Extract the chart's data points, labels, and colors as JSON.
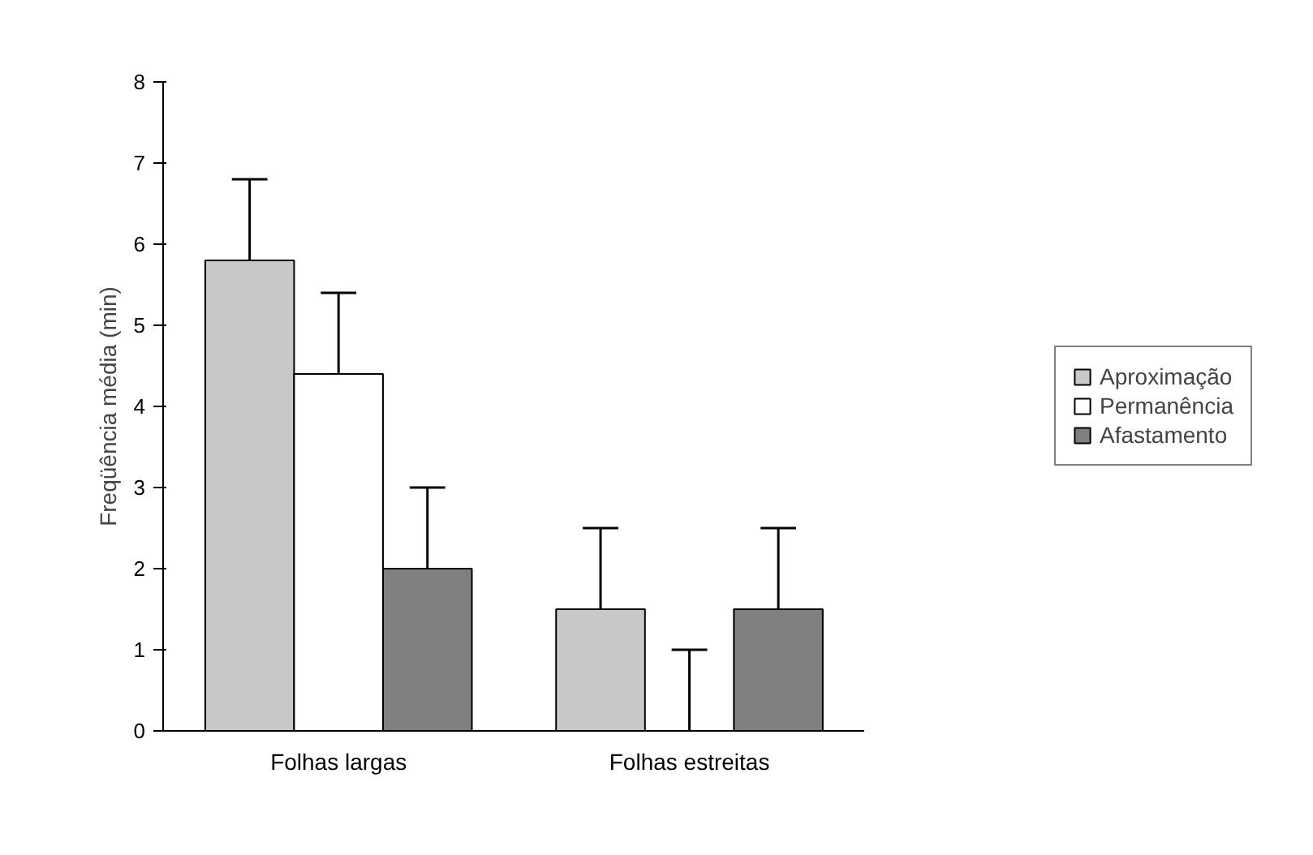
{
  "chart_data": {
    "type": "bar",
    "ylabel": "Freqüência média (min)",
    "categories": [
      "Folhas largas",
      "Folhas estreitas"
    ],
    "series": [
      {
        "name": "Aproximação",
        "color": "#c8c8c8",
        "values": [
          5.8,
          1.5
        ],
        "errors": [
          [
            5.8,
            6.8
          ],
          [
            1.5,
            2.5
          ]
        ]
      },
      {
        "name": "Permanência",
        "color": "#ffffff",
        "values": [
          4.4,
          0
        ],
        "errors": [
          [
            4.4,
            5.4
          ],
          [
            0,
            1
          ]
        ]
      },
      {
        "name": "Afastamento",
        "color": "#808080",
        "values": [
          2.0,
          1.5
        ],
        "errors": [
          [
            2.0,
            3.0
          ],
          [
            1.5,
            2.5
          ]
        ]
      }
    ],
    "ylim": [
      0,
      8
    ],
    "yticks": [
      0,
      1,
      2,
      3,
      4,
      5,
      6,
      7,
      8
    ],
    "grid": false,
    "legend": "right"
  }
}
